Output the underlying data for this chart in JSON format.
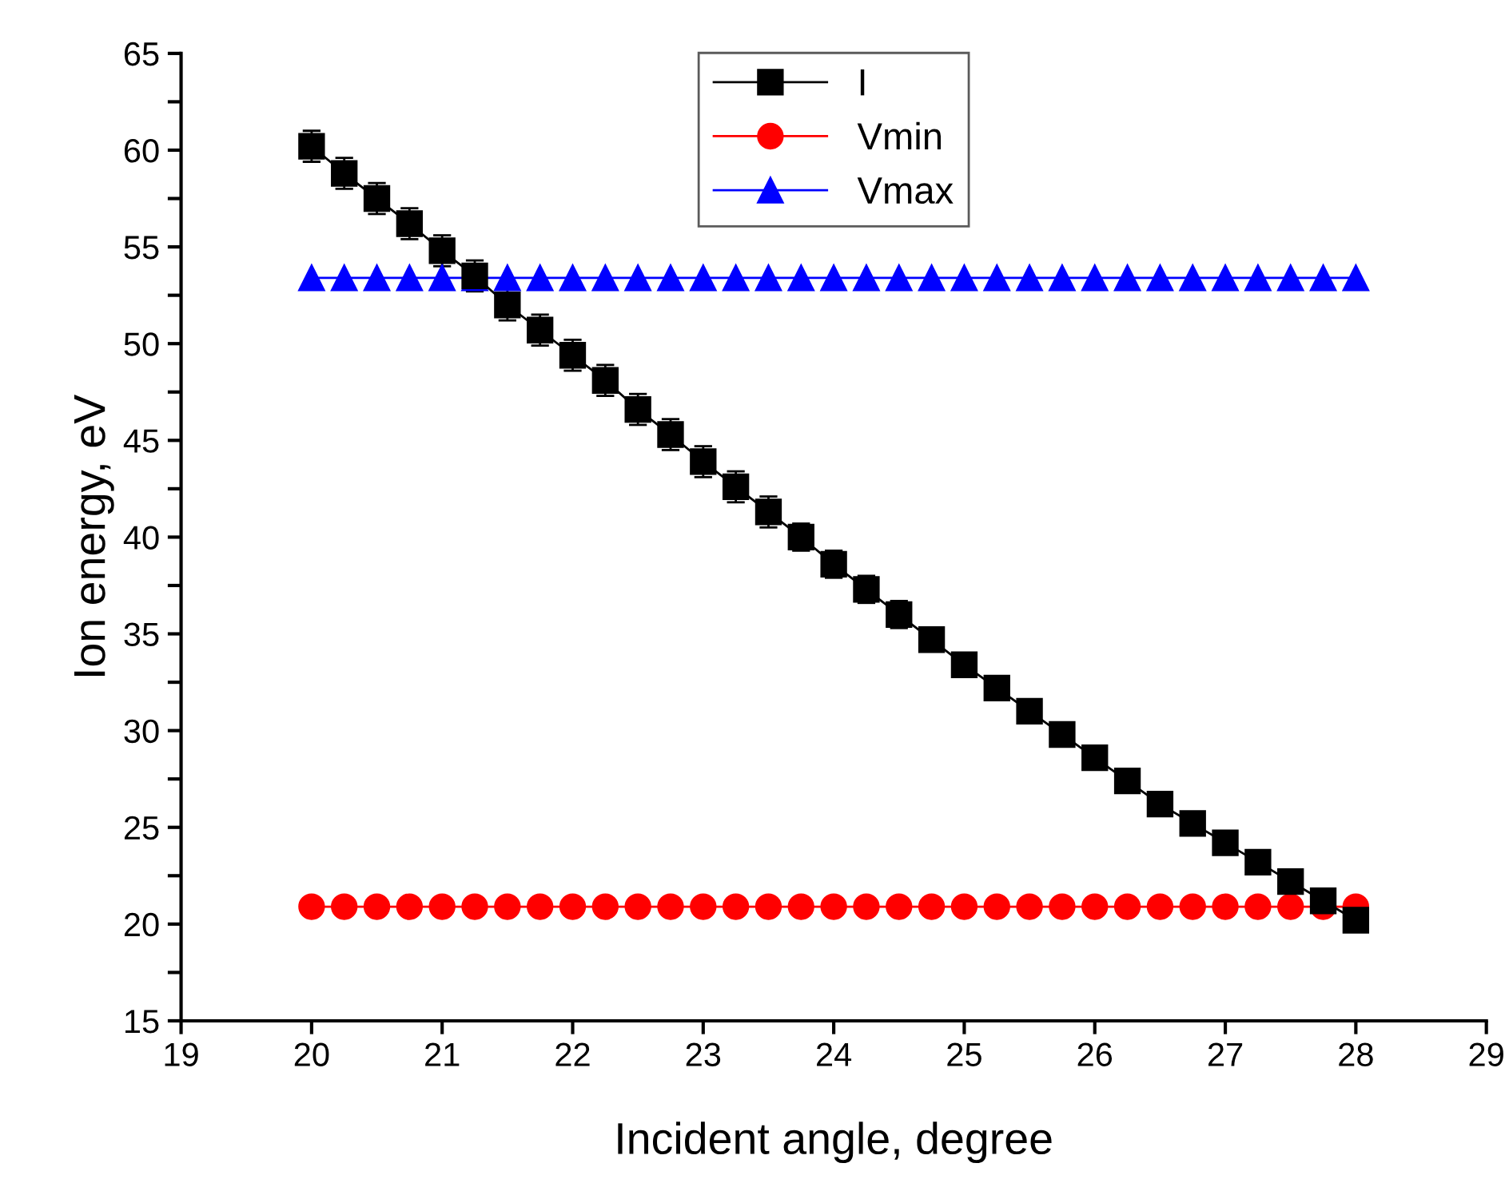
{
  "chart_data": {
    "type": "line",
    "xlabel": "Incident angle, degree",
    "ylabel": "Ion energy, eV",
    "x": [
      20,
      20.25,
      20.5,
      20.75,
      21,
      21.25,
      21.5,
      21.75,
      22,
      22.25,
      22.5,
      22.75,
      23,
      23.25,
      23.5,
      23.75,
      24,
      24.25,
      24.5,
      24.75,
      25,
      25.25,
      25.5,
      25.75,
      26,
      26.25,
      26.5,
      26.75,
      27,
      27.25,
      27.5,
      27.75,
      28
    ],
    "series": [
      {
        "name": "I",
        "color": "#000000",
        "marker": "square",
        "values": [
          60.2,
          58.8,
          57.5,
          56.2,
          54.8,
          53.5,
          52.0,
          50.7,
          49.4,
          48.1,
          46.6,
          45.3,
          43.9,
          42.6,
          41.3,
          40.0,
          38.6,
          37.3,
          36.0,
          34.7,
          33.4,
          32.2,
          31.0,
          29.8,
          28.6,
          27.4,
          26.2,
          25.2,
          24.2,
          23.2,
          22.2,
          21.2,
          20.2
        ],
        "errors": [
          0.8,
          0.8,
          0.8,
          0.8,
          0.8,
          0.8,
          0.8,
          0.8,
          0.8,
          0.8,
          0.8,
          0.8,
          0.8,
          0.8,
          0.8,
          0.7,
          0.7,
          0.7,
          0.7,
          0.6,
          0.5,
          0.4,
          0.3,
          0.2,
          0.2,
          0.2,
          0.2,
          0.2,
          0.2,
          0.2,
          0.2,
          0.2,
          0.2
        ]
      },
      {
        "name": "Vmin",
        "color": "#ff0000",
        "marker": "circle",
        "values": [
          20.9,
          20.9,
          20.9,
          20.9,
          20.9,
          20.9,
          20.9,
          20.9,
          20.9,
          20.9,
          20.9,
          20.9,
          20.9,
          20.9,
          20.9,
          20.9,
          20.9,
          20.9,
          20.9,
          20.9,
          20.9,
          20.9,
          20.9,
          20.9,
          20.9,
          20.9,
          20.9,
          20.9,
          20.9,
          20.9,
          20.9,
          20.9,
          20.9
        ]
      },
      {
        "name": "Vmax",
        "color": "#0000ff",
        "marker": "triangle",
        "values": [
          53.4,
          53.4,
          53.4,
          53.4,
          53.4,
          53.4,
          53.4,
          53.4,
          53.4,
          53.4,
          53.4,
          53.4,
          53.4,
          53.4,
          53.4,
          53.4,
          53.4,
          53.4,
          53.4,
          53.4,
          53.4,
          53.4,
          53.4,
          53.4,
          53.4,
          53.4,
          53.4,
          53.4,
          53.4,
          53.4,
          53.4,
          53.4,
          53.4
        ]
      }
    ],
    "xlim": [
      19,
      29
    ],
    "xticks": [
      19,
      20,
      21,
      22,
      23,
      24,
      25,
      26,
      27,
      28,
      29
    ],
    "ylim": [
      15,
      65
    ],
    "yticks": [
      15,
      {
        "value": 17.5,
        "label": null
      },
      20,
      {
        "value": 22.5,
        "label": null
      },
      25,
      {
        "value": 27.5,
        "label": null
      },
      30,
      {
        "value": 32.5,
        "label": null
      },
      35,
      {
        "value": 37.5,
        "label": null
      },
      40,
      {
        "value": 42.5,
        "label": null
      },
      45,
      {
        "value": 47.5,
        "label": null
      },
      50,
      {
        "value": 52.5,
        "label": null
      },
      55,
      {
        "value": 57.5,
        "label": null
      },
      60,
      {
        "value": 62.5,
        "label": null
      },
      65
    ],
    "grid": false,
    "legend": "top",
    "line_style": "solid"
  }
}
